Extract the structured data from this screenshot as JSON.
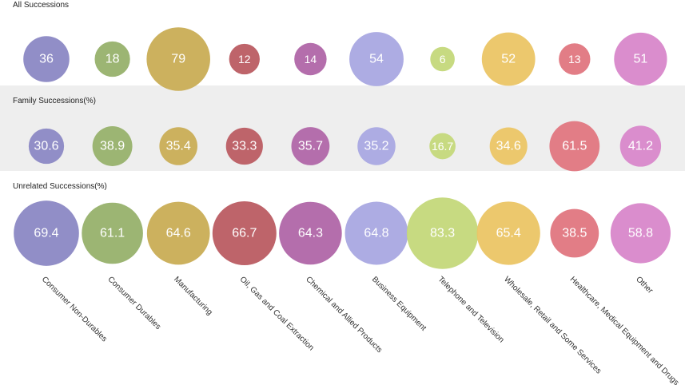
{
  "chart_data": {
    "type": "bubble",
    "categories": [
      "Consumer Non-Durables",
      "Consumer Durables",
      "Manufacturing",
      "Oil, Gas and Coal Extraction",
      "Chemical and Allied Products",
      "Business Equipment",
      "Telephone and Television",
      "Wholesale, Retail and Some Services",
      "Healthcare, Medical Equipment and Drugs",
      "Other"
    ],
    "colors": [
      "#8b88c4",
      "#97b16c",
      "#c9ad55",
      "#bb5c62",
      "#b066a8",
      "#a9a8e1",
      "#c4d87a",
      "#ebc565",
      "#e07680",
      "#d887ca"
    ],
    "series": [
      {
        "name": "All Successions",
        "values": [
          36,
          18,
          79,
          12,
          14,
          54,
          6,
          52,
          13,
          51
        ],
        "labels": [
          "36",
          "18",
          "79",
          "12",
          "14",
          "54",
          "6",
          "52",
          "13",
          "51"
        ]
      },
      {
        "name": "Family Successions(%)",
        "values": [
          30.6,
          38.9,
          35.4,
          33.3,
          35.7,
          35.2,
          16.7,
          34.6,
          61.5,
          41.2
        ],
        "labels": [
          "30.6",
          "38.9",
          "35.4",
          "33.3",
          "35.7",
          "35.2",
          "16.7",
          "34.6",
          "61.5",
          "41.2"
        ]
      },
      {
        "name": "Unrelated Successions(%)",
        "values": [
          69.4,
          61.1,
          64.6,
          66.7,
          64.3,
          64.8,
          83.3,
          65.4,
          38.5,
          58.8
        ],
        "labels": [
          "69.4",
          "61.1",
          "64.6",
          "66.7",
          "64.3",
          "64.8",
          "83.3",
          "65.4",
          "38.5",
          "58.8"
        ]
      }
    ]
  }
}
